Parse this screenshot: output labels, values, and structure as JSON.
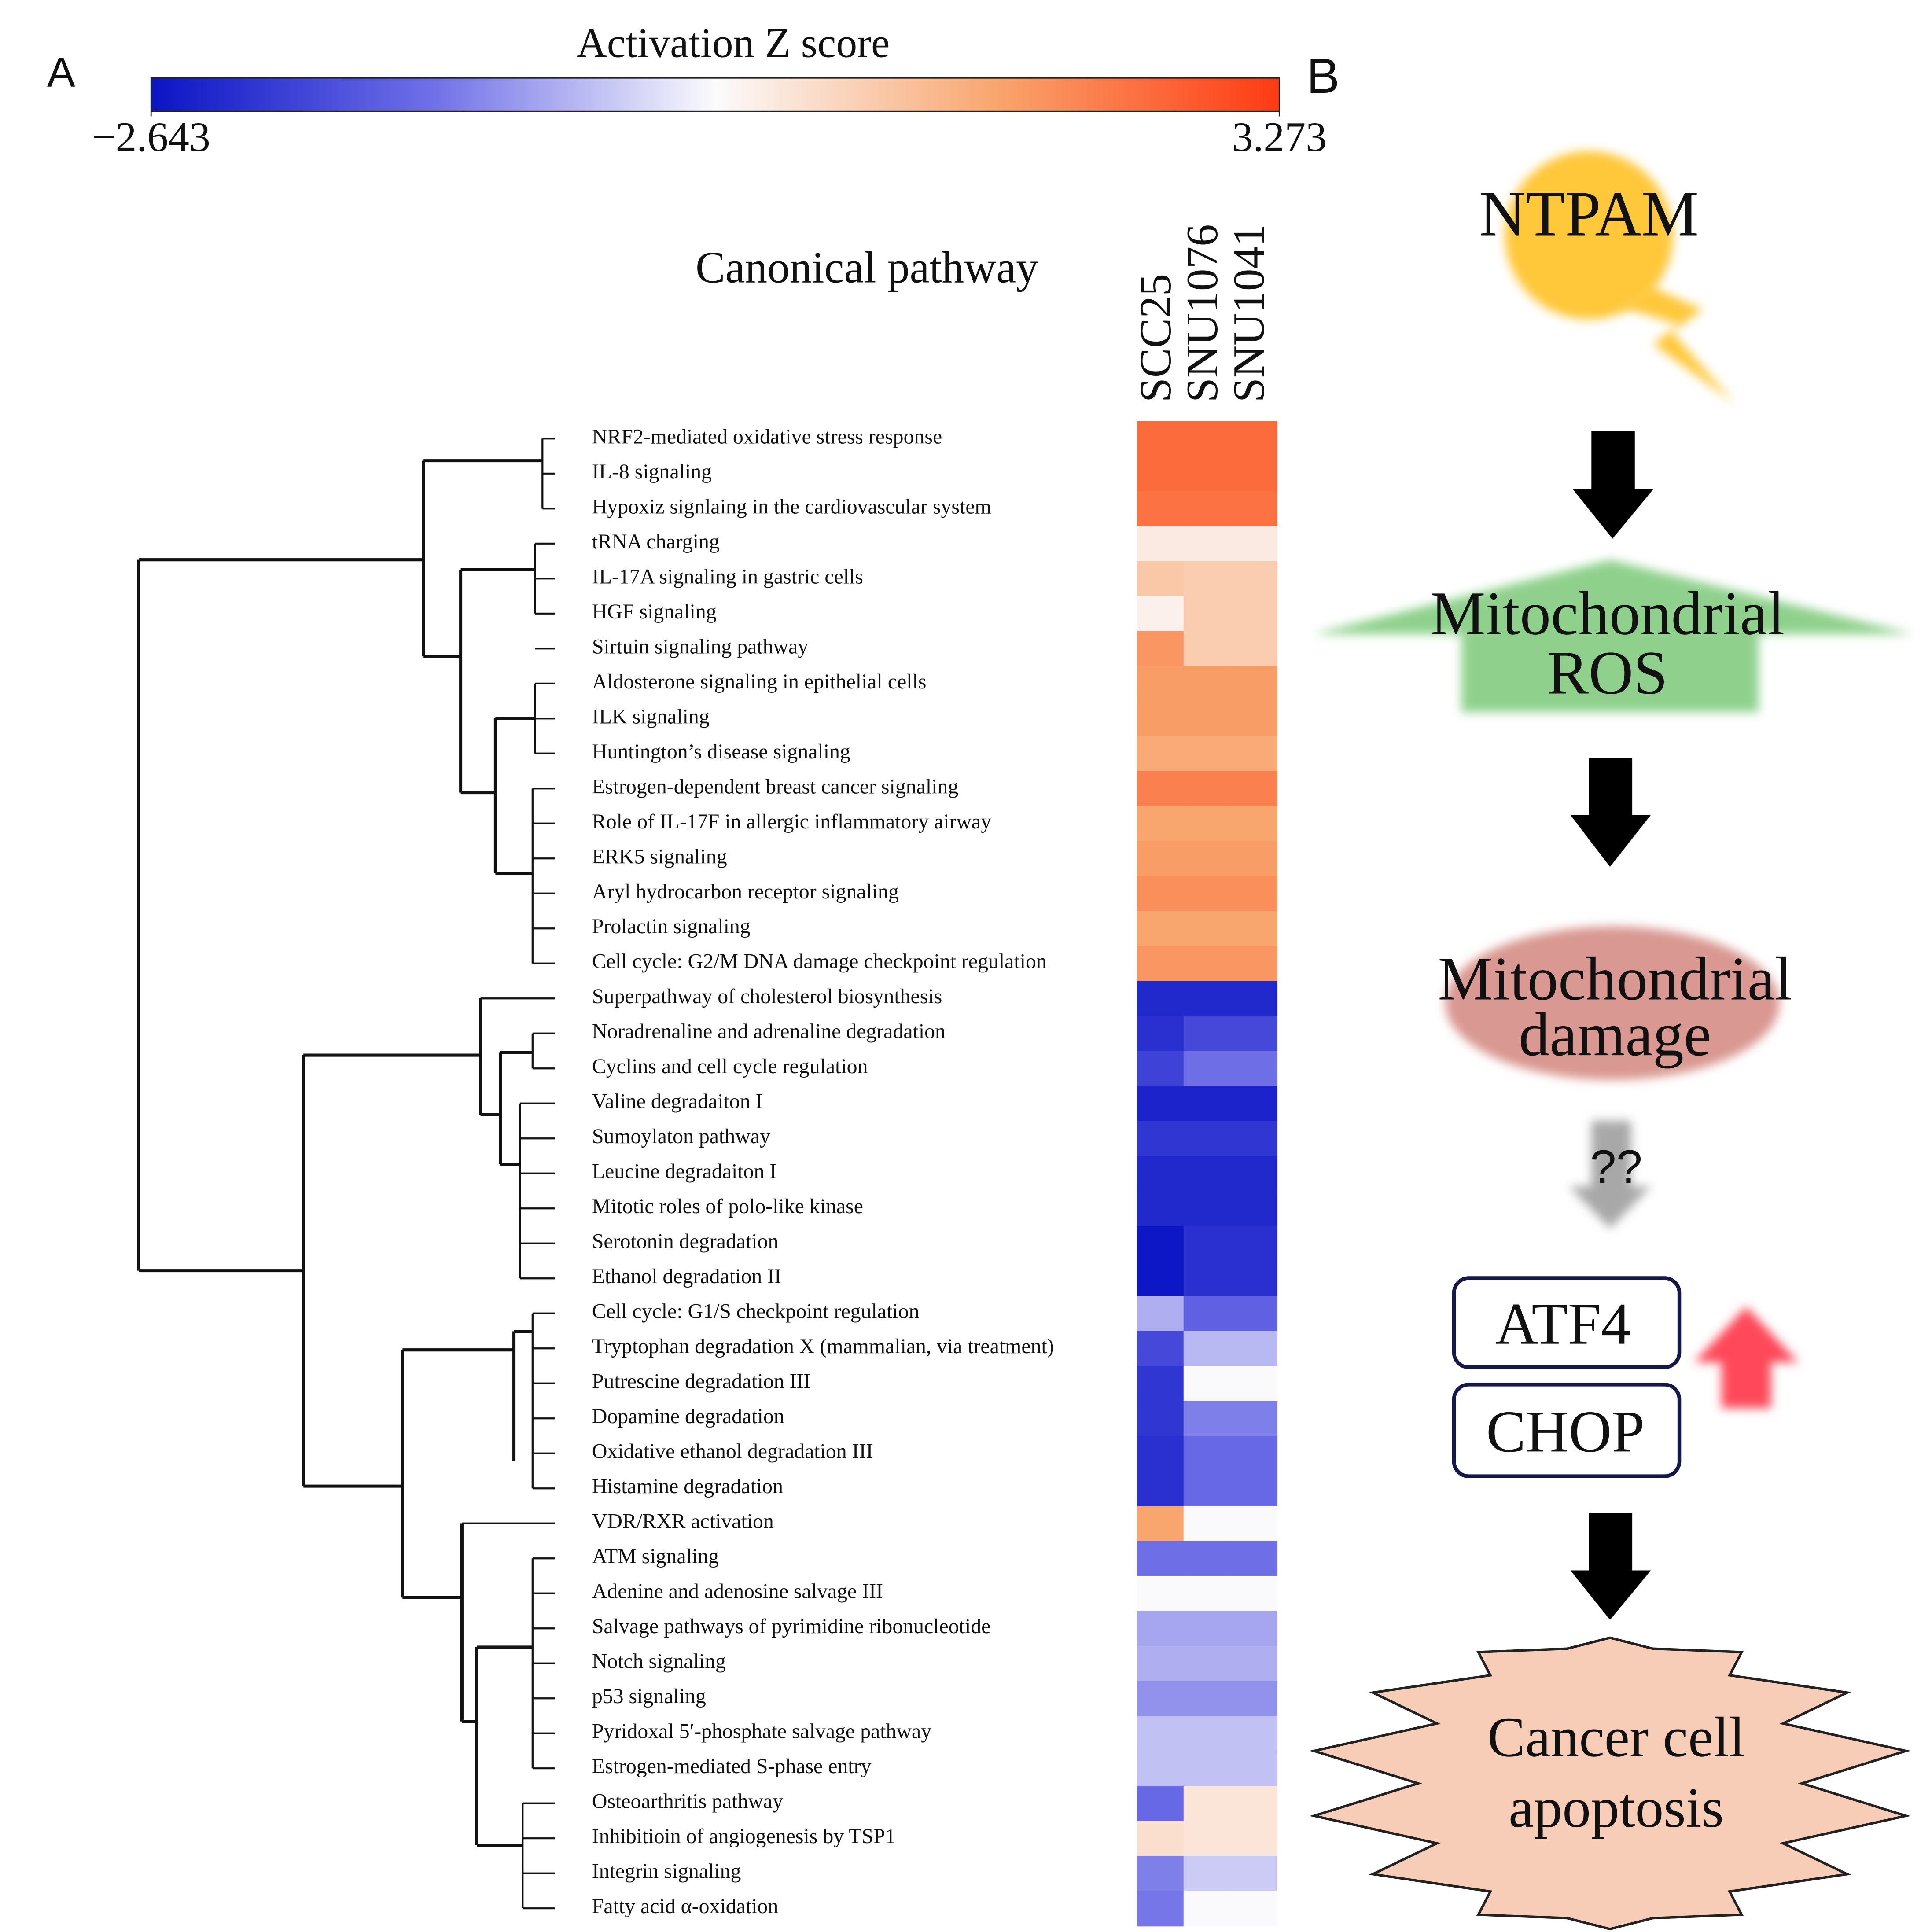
{
  "panels": {
    "a": "A",
    "b": "B"
  },
  "chart_data": {
    "type": "heatmap",
    "title": "Activation Z score",
    "zlim": [
      -2.643,
      3.273
    ],
    "zticks": [
      {
        "value": -2.643,
        "label": "−2.643"
      },
      3.273
    ],
    "colorscale": [
      "#0b14c4",
      "#7070e8",
      "#fbfbfd",
      "#f9a56e",
      "#ff3a12"
    ],
    "ylabel": "Canonical pathway",
    "columns": [
      "SCC25",
      "SNU1076",
      "SNU1041"
    ],
    "rows": [
      "NRF2-mediated oxidative stress response",
      "IL-8 signaling",
      "Hypoxiz signlaing in the cardiovascular system",
      "tRNA charging",
      "IL-17A signaling in gastric cells",
      "HGF signaling",
      "Sirtuin signaling pathway",
      "Aldosterone signaling in epithelial cells",
      "ILK signaling",
      "Huntington’s disease signaling",
      "Estrogen-dependent breast cancer signaling",
      "Role of IL-17F in allergic inflammatory airway",
      "ERK5 signaling",
      "Aryl hydrocarbon receptor signaling",
      "Prolactin signaling",
      "Cell cycle: G2/M DNA damage checkpoint regulation",
      "Superpathway of cholesterol biosynthesis",
      "Noradrenaline and adrenaline degradation",
      "Cyclins and cell cycle regulation",
      "Valine degradaiton I",
      "Sumoylaton pathway",
      "Leucine degradaiton I",
      "Mitotic roles of polo-like kinase",
      "Serotonin degradation",
      "Ethanol degradation II",
      "Cell cycle: G1/S checkpoint regulation",
      "Tryptophan degradation X (mammalian, via treatment)",
      "Putrescine degradation III",
      "Dopamine degradation",
      "Oxidative ethanol degradation III",
      "Histamine degradation",
      "VDR/RXR activation",
      "ATM signaling",
      "Adenine and adenosine salvage III",
      "Salvage pathways of pyrimidine ribonucleotide",
      "Notch signaling",
      "p53 signaling",
      "Pyridoxal 5′-phosphate salvage pathway",
      "Estrogen-mediated S-phase entry",
      "Osteoarthritis pathway",
      "Inhibitioin of angiogenesis by TSP1",
      "Integrin signaling",
      "Fatty acid α-oxidation"
    ],
    "values": [
      [
        2.6,
        2.6,
        2.6
      ],
      [
        2.6,
        2.6,
        2.6
      ],
      [
        2.5,
        2.5,
        2.5
      ],
      [
        0.6,
        0.6,
        0.6
      ],
      [
        1.2,
        1.1,
        1.1
      ],
      [
        0.5,
        1.1,
        1.1
      ],
      [
        2.0,
        1.1,
        1.1
      ],
      [
        1.9,
        1.9,
        1.9
      ],
      [
        1.9,
        1.9,
        1.9
      ],
      [
        1.7,
        1.7,
        1.7
      ],
      [
        2.3,
        2.3,
        2.3
      ],
      [
        1.8,
        1.8,
        1.8
      ],
      [
        1.9,
        1.9,
        1.9
      ],
      [
        2.1,
        2.1,
        2.1
      ],
      [
        1.8,
        1.8,
        1.8
      ],
      [
        2.0,
        2.0,
        2.0
      ],
      [
        -2.3,
        -2.3,
        -2.3
      ],
      [
        -2.2,
        -1.8,
        -1.8
      ],
      [
        -1.9,
        -1.2,
        -1.2
      ],
      [
        -2.4,
        -2.4,
        -2.4
      ],
      [
        -2.1,
        -2.1,
        -2.1
      ],
      [
        -2.3,
        -2.3,
        -2.3
      ],
      [
        -2.3,
        -2.3,
        -2.3
      ],
      [
        -2.6,
        -2.2,
        -2.2
      ],
      [
        -2.6,
        -2.2,
        -2.2
      ],
      [
        -0.5,
        -1.4,
        -1.4
      ],
      [
        -1.8,
        -0.4,
        -0.4
      ],
      [
        -2.1,
        0.3,
        0.3
      ],
      [
        -2.1,
        -1.0,
        -1.0
      ],
      [
        -2.2,
        -1.3,
        -1.3
      ],
      [
        -2.2,
        -1.3,
        -1.3
      ],
      [
        1.8,
        0.3,
        0.3
      ],
      [
        -1.2,
        -1.2,
        -1.2
      ],
      [
        0.3,
        0.3,
        0.3
      ],
      [
        -0.6,
        -0.6,
        -0.6
      ],
      [
        -0.5,
        -0.5,
        -0.5
      ],
      [
        -0.8,
        -0.8,
        -0.8
      ],
      [
        -0.3,
        -0.3,
        -0.3
      ],
      [
        -0.3,
        -0.3,
        -0.3
      ],
      [
        -1.3,
        0.7,
        0.7
      ],
      [
        0.8,
        0.7,
        0.7
      ],
      [
        -1.0,
        -0.2,
        -0.2
      ],
      [
        -1.1,
        0.3,
        0.3
      ]
    ]
  },
  "diagram": {
    "source": "NTPAM",
    "ros": [
      "Mitochondrial",
      "ROS"
    ],
    "damage": [
      "Mitochondrial",
      "damage"
    ],
    "unknown": "??",
    "markers": [
      "ATF4",
      "CHOP"
    ],
    "outcome": [
      "Cancer cell",
      "apoptosis"
    ]
  }
}
